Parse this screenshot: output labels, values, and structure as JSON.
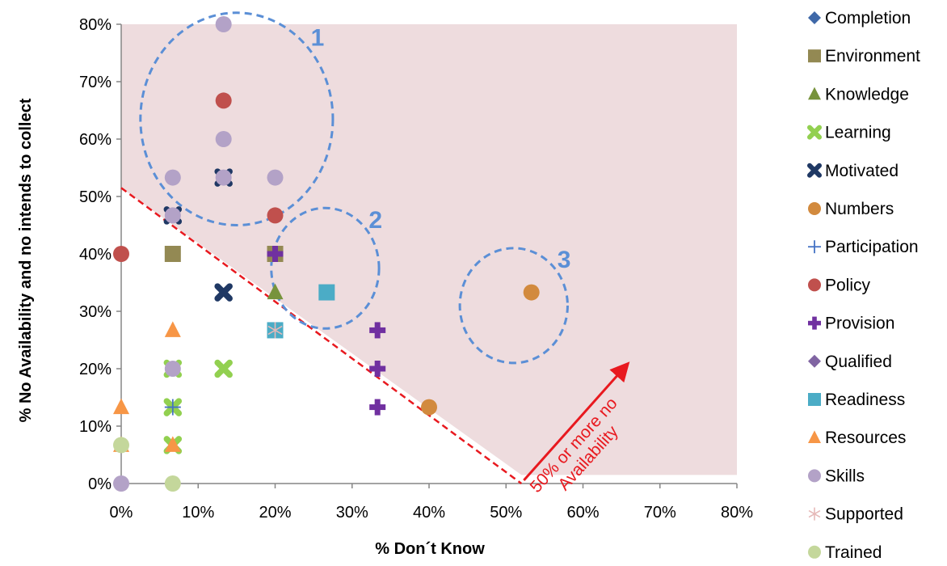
{
  "chart_data": {
    "type": "scatter",
    "xlabel": "% Don´t Know",
    "ylabel": "% No Availability and no intends to collect",
    "xlim": [
      0,
      80
    ],
    "ylim": [
      0,
      80
    ],
    "x_ticks": [
      "0%",
      "10%",
      "20%",
      "30%",
      "40%",
      "50%",
      "60%",
      "70%",
      "80%"
    ],
    "y_ticks": [
      "0%",
      "10%",
      "20%",
      "30%",
      "40%",
      "50%",
      "60%",
      "70%",
      "80%"
    ],
    "legend_position": "right",
    "shaded_region_color": "#EEDCDE",
    "threshold_line": {
      "from": [
        0,
        51.5
      ],
      "to": [
        52,
        0
      ],
      "color": "#E8191F"
    },
    "threshold_text_lines": [
      "50% or more no",
      "Availability"
    ],
    "clusters": [
      {
        "label": "1",
        "cx": 15,
        "cy": 63.5,
        "rx": 12.5,
        "ry": 18.5
      },
      {
        "label": "2",
        "cx": 26.5,
        "cy": 37.5,
        "rx": 7,
        "ry": 10.5
      },
      {
        "label": "3",
        "cx": 51,
        "cy": 31,
        "rx": 7,
        "ry": 10
      }
    ],
    "series": [
      {
        "name": "Completion",
        "marker": "diamond",
        "color": "#3F68A8",
        "points": []
      },
      {
        "name": "Environment",
        "marker": "square",
        "color": "#938953",
        "points": [
          [
            6.7,
            40
          ],
          [
            20,
            40
          ]
        ]
      },
      {
        "name": "Knowledge",
        "marker": "triangle",
        "color": "#77933C",
        "points": [
          [
            20,
            33.3
          ]
        ]
      },
      {
        "name": "Learning",
        "marker": "xcross",
        "color": "#92D050",
        "points": [
          [
            6.7,
            20
          ],
          [
            6.7,
            13.3
          ],
          [
            6.7,
            6.7
          ],
          [
            13.3,
            20
          ]
        ]
      },
      {
        "name": "Motivated",
        "marker": "xcross",
        "color": "#1F3864",
        "points": [
          [
            13.3,
            33.3
          ],
          [
            6.7,
            46.7
          ],
          [
            13.3,
            53.3
          ]
        ]
      },
      {
        "name": "Numbers",
        "marker": "circle",
        "color": "#D28A3E",
        "points": [
          [
            53.3,
            33.3
          ],
          [
            40,
            13.3
          ]
        ]
      },
      {
        "name": "Participation",
        "marker": "plus",
        "color": "#4472C4",
        "points": [
          [
            6.7,
            13.3
          ]
        ]
      },
      {
        "name": "Policy",
        "marker": "circle",
        "color": "#C0504D",
        "points": [
          [
            13.3,
            66.7
          ],
          [
            20,
            46.7
          ],
          [
            0,
            40
          ]
        ]
      },
      {
        "name": "Provision",
        "marker": "pluscross",
        "color": "#7030A0",
        "points": [
          [
            20,
            40
          ],
          [
            33.3,
            26.7
          ],
          [
            33.3,
            20
          ],
          [
            33.3,
            13.3
          ]
        ]
      },
      {
        "name": "Qualified",
        "marker": "diamond",
        "color": "#8064A2",
        "points": []
      },
      {
        "name": "Readiness",
        "marker": "square",
        "color": "#4BACC6",
        "points": [
          [
            26.7,
            33.3
          ],
          [
            20,
            26.7
          ]
        ]
      },
      {
        "name": "Resources",
        "marker": "triangle",
        "color": "#F79646",
        "points": [
          [
            6.7,
            26.7
          ],
          [
            0,
            13.3
          ],
          [
            0,
            6.7
          ],
          [
            6.7,
            6.7
          ]
        ]
      },
      {
        "name": "Skills",
        "marker": "circle",
        "color": "#B3A2C7",
        "points": [
          [
            13.3,
            80
          ],
          [
            13.3,
            60
          ],
          [
            6.7,
            53.3
          ],
          [
            13.3,
            53.3
          ],
          [
            20,
            53.3
          ],
          [
            6.7,
            46.7
          ],
          [
            6.7,
            20
          ],
          [
            0,
            0
          ]
        ]
      },
      {
        "name": "Supported",
        "marker": "asterisk",
        "color": "#E6B9B8",
        "points": [
          [
            20,
            26.7
          ]
        ]
      },
      {
        "name": "Trained",
        "marker": "circle",
        "color": "#C4D79B",
        "points": [
          [
            0,
            6.7
          ],
          [
            6.7,
            0
          ]
        ]
      }
    ]
  }
}
